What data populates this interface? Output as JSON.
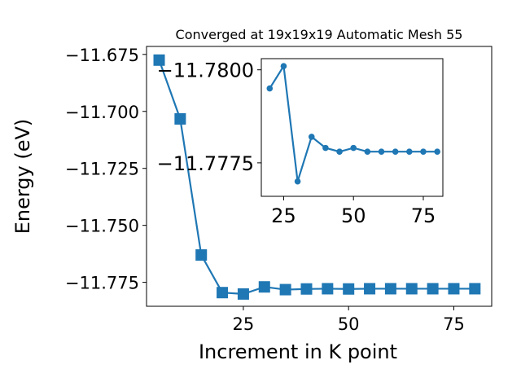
{
  "chart_data": [
    {
      "type": "line",
      "title": "Converged at 19x19x19 Automatic Mesh 55",
      "xlabel": "Increment in K point",
      "ylabel": "Energy (eV)",
      "marker": "square",
      "color": "#1f77b4",
      "xlim": [
        2,
        84
      ],
      "ylim": [
        -11.7855,
        -11.6715
      ],
      "xticks": [
        25,
        50,
        75
      ],
      "yticks": [
        -11.675,
        -11.7,
        -11.725,
        -11.75,
        -11.775
      ],
      "xtick_labels": [
        "25",
        "50",
        "75"
      ],
      "ytick_labels": [
        "−11.675",
        "−11.700",
        "−11.725",
        "−11.750",
        "−11.775"
      ],
      "series": [
        {
          "x": [
            5,
            10,
            15,
            20,
            25,
            30,
            35,
            40,
            45,
            50,
            55,
            60,
            65,
            70,
            75,
            80
          ],
          "values": [
            -11.6775,
            -11.7033,
            -11.763,
            -11.7795,
            -11.7801,
            -11.777,
            -11.7782,
            -11.7779,
            -11.7778,
            -11.7779,
            -11.7778,
            -11.7778,
            -11.7778,
            -11.7778,
            -11.7778,
            -11.7778
          ]
        }
      ]
    },
    {
      "type": "line",
      "title": "",
      "xlabel": "",
      "ylabel": "",
      "marker": "circle",
      "color": "#1f77b4",
      "xlim": [
        17,
        82
      ],
      "ylim": [
        -11.7766,
        -11.7803
      ],
      "xticks": [
        25,
        50,
        75
      ],
      "yticks": [
        -11.78,
        -11.7775
      ],
      "xtick_labels": [
        "25",
        "50",
        "75"
      ],
      "ytick_labels": [
        "−11.7800",
        "−11.7775"
      ],
      "series": [
        {
          "x": [
            20,
            25,
            30,
            35,
            40,
            45,
            50,
            55,
            60,
            65,
            70,
            75,
            80
          ],
          "values": [
            -11.7795,
            -11.7801,
            -11.777,
            -11.7782,
            -11.7779,
            -11.7778,
            -11.7779,
            -11.7778,
            -11.7778,
            -11.7778,
            -11.7778,
            -11.7778,
            -11.7778
          ]
        }
      ]
    }
  ]
}
